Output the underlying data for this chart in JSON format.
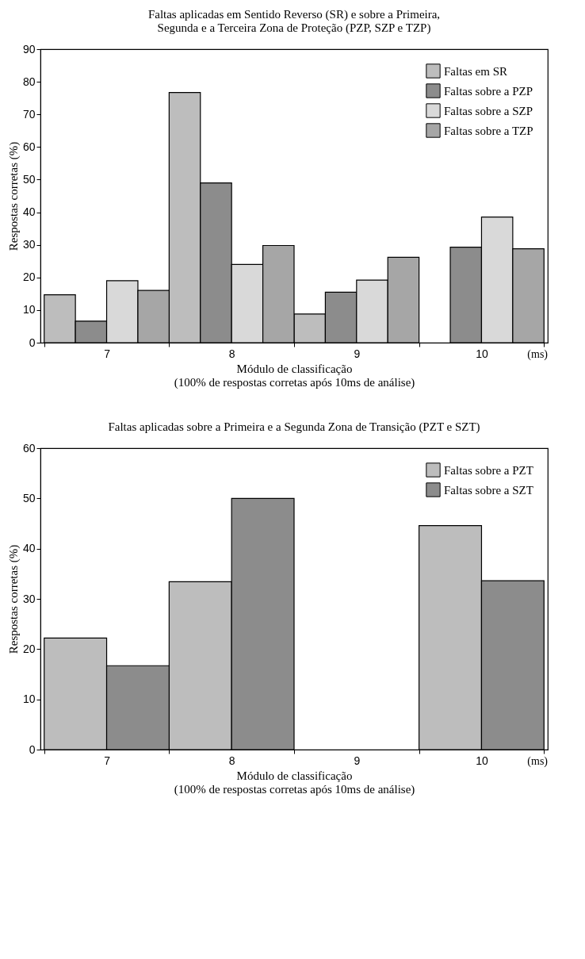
{
  "chart_data": [
    {
      "type": "bar",
      "title": "Faltas aplicadas em Sentido Reverso (SR) e sobre a Primeira,\nSegunda e a Terceira Zona de Proteção (PZP, SZP e TZP)",
      "xlabel": "Módulo de classificação",
      "ylabel": "Respostas corretas (%)",
      "annotations": [
        "(ms)",
        "(100% de respostas corretas após 10ms de análise)"
      ],
      "categories": [
        "7",
        "8",
        "9",
        "10"
      ],
      "series": [
        {
          "name": "Faltas em SR",
          "color": "#bdbdbd",
          "values": [
            14.7,
            76.7,
            8.8,
            null
          ]
        },
        {
          "name": "Faltas sobre a PZP",
          "color": "#8c8c8c",
          "values": [
            6.6,
            49,
            15.5,
            29.3
          ]
        },
        {
          "name": "Faltas sobre a SZP",
          "color": "#d9d9d9",
          "values": [
            19,
            24,
            19.2,
            38.5
          ]
        },
        {
          "name": "Faltas sobre a TZP",
          "color": "#a6a6a6",
          "values": [
            16,
            29.8,
            26.2,
            28.8
          ]
        }
      ],
      "ylim": [
        0,
        90
      ],
      "yticks": [
        0,
        10,
        20,
        30,
        40,
        50,
        60,
        70,
        80,
        90
      ],
      "grid": false,
      "legend": "top right"
    },
    {
      "type": "bar",
      "title": "Faltas aplicadas sobre a Primeira e a Segunda Zona de Transição (PZT e SZT)",
      "xlabel": "Módulo de classificação",
      "ylabel": "Respostas corretas (%)",
      "annotations": [
        "(ms)",
        "(100% de respostas corretas após 10ms de análise)"
      ],
      "categories": [
        "7",
        "8",
        "9",
        "10"
      ],
      "series": [
        {
          "name": "Faltas sobre a PZT",
          "color": "#bdbdbd",
          "values": [
            22.2,
            33.4,
            null,
            44.6
          ]
        },
        {
          "name": "Faltas sobre a SZT",
          "color": "#8c8c8c",
          "values": [
            16.7,
            50,
            null,
            33.6
          ]
        }
      ],
      "ylim": [
        0,
        60
      ],
      "yticks": [
        0,
        10,
        20,
        30,
        40,
        50,
        60
      ],
      "grid": false,
      "legend": "top right"
    }
  ]
}
